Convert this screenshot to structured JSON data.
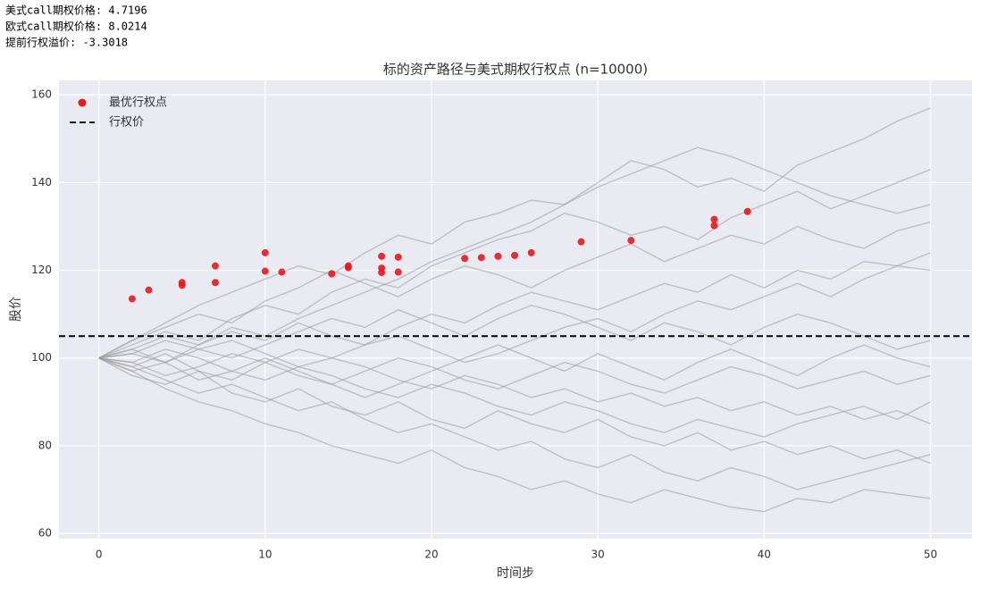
{
  "output_lines": [
    "美式call期权价格: 4.7196",
    "欧式call期权价格: 8.0214",
    "提前行权溢价: -3.3018"
  ],
  "chart_data": {
    "type": "line",
    "title": "标的资产路径与美式期权行权点 (n=10000)",
    "x_label": "时间步",
    "y_label": "股价",
    "xlim": [
      -2.4,
      52.5
    ],
    "ylim": [
      58.8,
      163.3
    ],
    "xticks": [
      0,
      10,
      20,
      30,
      40,
      50
    ],
    "yticks": [
      60,
      80,
      100,
      120,
      140,
      160
    ],
    "grid": true,
    "legend": "upper left",
    "paths": {
      "color": "#999999",
      "x": [
        0,
        2,
        4,
        6,
        8,
        10,
        12,
        14,
        16,
        18,
        20,
        22,
        24,
        26,
        28,
        30,
        32,
        34,
        36,
        38,
        40,
        42,
        44,
        46,
        48,
        50
      ],
      "values": [
        [
          100,
          104,
          108,
          112,
          115,
          118,
          121,
          119,
          124,
          128,
          126,
          131,
          133,
          136,
          135,
          140,
          145,
          143,
          139,
          141,
          138,
          144,
          147,
          150,
          154,
          157
        ],
        [
          100,
          97,
          93,
          90,
          88,
          85,
          83,
          80,
          78,
          76,
          79,
          75,
          73,
          70,
          72,
          69,
          67,
          70,
          68,
          66,
          65,
          68,
          67,
          70,
          69,
          68
        ],
        [
          100,
          102,
          99,
          103,
          106,
          104,
          108,
          105,
          103,
          107,
          110,
          108,
          112,
          115,
          113,
          111,
          114,
          117,
          115,
          119,
          116,
          120,
          118,
          122,
          121,
          124
        ],
        [
          100,
          98,
          101,
          97,
          95,
          99,
          96,
          94,
          97,
          100,
          98,
          95,
          93,
          96,
          99,
          97,
          94,
          92,
          95,
          98,
          96,
          93,
          95,
          97,
          94,
          96
        ],
        [
          100,
          103,
          106,
          104,
          109,
          112,
          110,
          115,
          118,
          116,
          121,
          124,
          127,
          129,
          133,
          131,
          128,
          130,
          127,
          132,
          135,
          138,
          134,
          137,
          140,
          143
        ],
        [
          100,
          96,
          94,
          97,
          92,
          90,
          93,
          89,
          87,
          90,
          86,
          84,
          88,
          85,
          83,
          86,
          82,
          80,
          83,
          79,
          81,
          78,
          80,
          77,
          79,
          76
        ],
        [
          100,
          101,
          104,
          102,
          100,
          103,
          106,
          109,
          107,
          111,
          108,
          105,
          109,
          112,
          110,
          107,
          104,
          108,
          106,
          103,
          107,
          110,
          108,
          105,
          102,
          104
        ],
        [
          100,
          99,
          96,
          98,
          101,
          99,
          102,
          100,
          98,
          95,
          93,
          96,
          94,
          91,
          93,
          90,
          92,
          89,
          91,
          88,
          90,
          87,
          89,
          86,
          88,
          85
        ],
        [
          100,
          104,
          107,
          110,
          108,
          113,
          116,
          120,
          117,
          114,
          118,
          121,
          119,
          116,
          120,
          123,
          126,
          122,
          125,
          128,
          126,
          130,
          127,
          125,
          129,
          131
        ],
        [
          100,
          97,
          99,
          95,
          97,
          100,
          97,
          94,
          91,
          94,
          97,
          100,
          103,
          100,
          97,
          101,
          98,
          95,
          99,
          102,
          99,
          96,
          100,
          103,
          100,
          98
        ],
        [
          100,
          102,
          105,
          103,
          107,
          105,
          109,
          112,
          115,
          118,
          122,
          125,
          128,
          131,
          135,
          139,
          142,
          145,
          148,
          146,
          143,
          140,
          137,
          135,
          133,
          135
        ],
        [
          100,
          98,
          95,
          92,
          94,
          91,
          88,
          90,
          86,
          83,
          85,
          82,
          79,
          81,
          77,
          75,
          78,
          74,
          72,
          75,
          73,
          70,
          72,
          74,
          76,
          78
        ],
        [
          100,
          101,
          99,
          102,
          104,
          101,
          98,
          100,
          103,
          105,
          102,
          99,
          101,
          104,
          107,
          109,
          106,
          110,
          113,
          111,
          114,
          117,
          114,
          118,
          121,
          120
        ],
        [
          100,
          99,
          102,
          100,
          97,
          95,
          98,
          96,
          93,
          91,
          94,
          92,
          89,
          87,
          90,
          88,
          85,
          83,
          86,
          84,
          82,
          85,
          87,
          89,
          86,
          90
        ]
      ]
    },
    "series": [
      {
        "name": "最优行权点",
        "type": "scatter",
        "color": "#e31a1c",
        "x": [
          2,
          3,
          5,
          5,
          7,
          7,
          10,
          10,
          11,
          14,
          15,
          15,
          17,
          17,
          17,
          18,
          18,
          22,
          23,
          24,
          25,
          26,
          29,
          32,
          37,
          37,
          39
        ],
        "values": [
          113.5,
          115.5,
          117.2,
          116.6,
          121,
          117.2,
          124,
          119.8,
          119.6,
          119.2,
          121,
          120.6,
          123.2,
          120.5,
          119.5,
          123,
          119.6,
          122.7,
          122.9,
          123.2,
          123.4,
          124,
          126.5,
          126.8,
          131.6,
          130.2,
          133.4
        ]
      },
      {
        "name": "行权价",
        "type": "hline",
        "color": "#000000",
        "values": [
          105
        ]
      }
    ]
  }
}
